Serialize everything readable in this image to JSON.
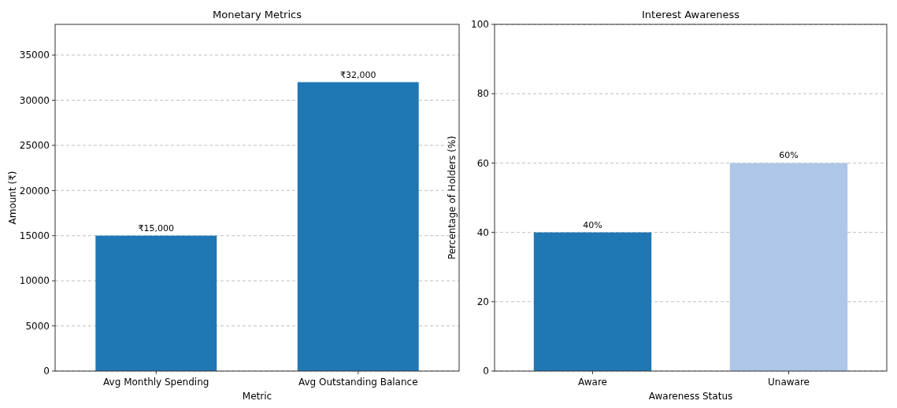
{
  "chart_data": [
    {
      "type": "bar",
      "title": "Monetary Metrics",
      "xlabel": "Metric",
      "ylabel": "Amount (₹)",
      "categories": [
        "Avg Monthly Spending",
        "Avg Outstanding Balance"
      ],
      "values": [
        15000,
        32000
      ],
      "color": "#1f77b4",
      "value_labels": [
        "₹15,000",
        "₹32,000"
      ],
      "ylim": [
        0,
        38400
      ],
      "yticks": [
        0,
        5000,
        10000,
        15000,
        20000,
        25000,
        30000,
        35000
      ],
      "grid": "y"
    },
    {
      "type": "bar",
      "title": "Interest Awareness",
      "xlabel": "Awareness Status",
      "ylabel": "Percentage of Holders (%)",
      "categories": [
        "Aware",
        "Unaware"
      ],
      "values": [
        40,
        60
      ],
      "colors": [
        "#1f77b4",
        "#aec7e8"
      ],
      "value_labels": [
        "40%",
        "60%"
      ],
      "ylim": [
        0,
        100
      ],
      "yticks": [
        0,
        20,
        40,
        60,
        80,
        100
      ],
      "grid": "y"
    }
  ]
}
